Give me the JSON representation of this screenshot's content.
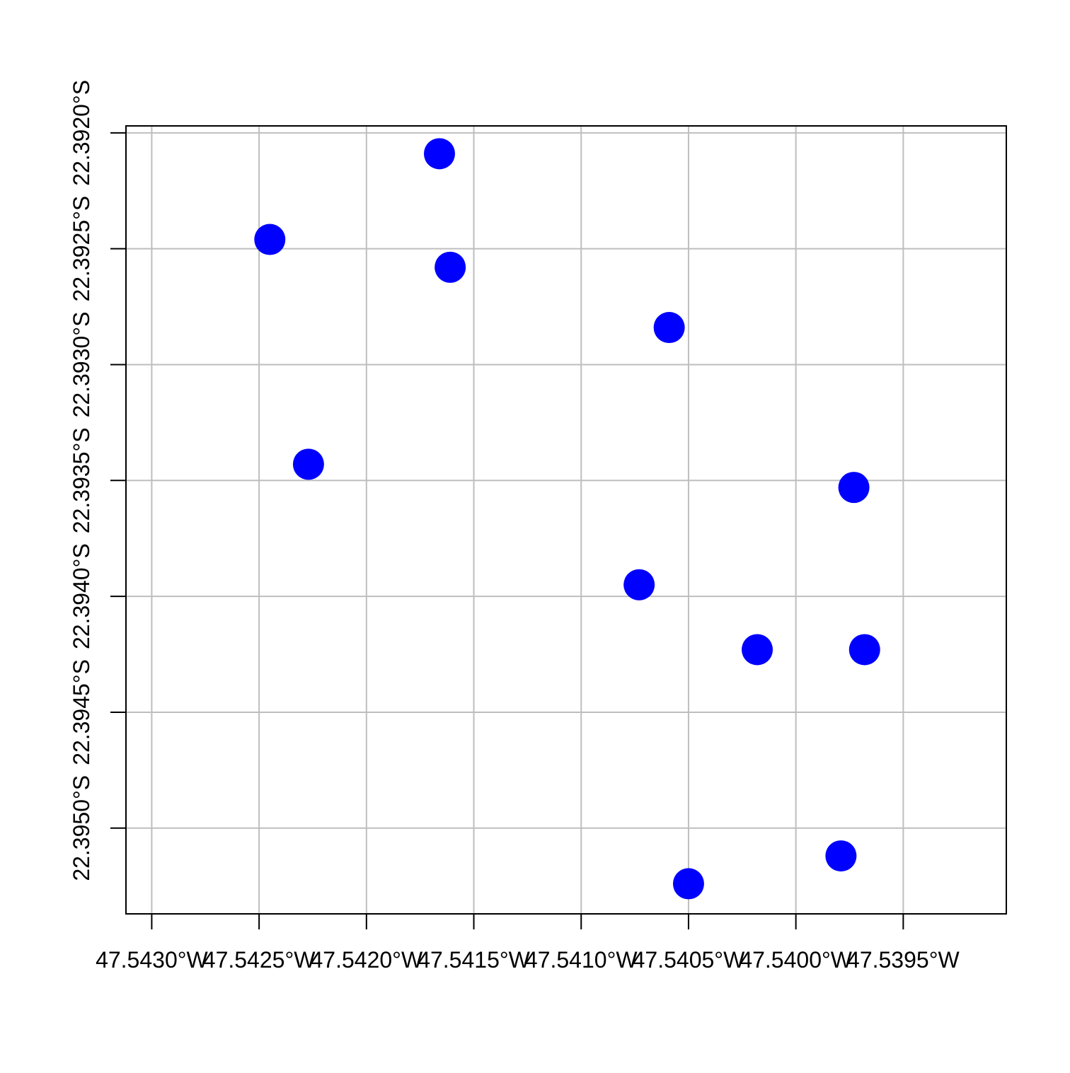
{
  "chart_data": {
    "type": "scatter",
    "title": "",
    "xlabel": "",
    "ylabel": "",
    "grid": true,
    "xlim": [
      -47.54312,
      -47.53902
    ],
    "ylim": [
      -22.39537,
      -22.39197
    ],
    "x_ticks": [
      -47.543,
      -47.5425,
      -47.542,
      -47.5415,
      -47.541,
      -47.5405,
      -47.54,
      -47.5395
    ],
    "x_tick_labels": [
      "47.5430°W",
      "47.5425°W",
      "47.5420°W",
      "47.5415°W",
      "47.5410°W",
      "47.5405°W",
      "47.5400°W",
      "47.5395°W"
    ],
    "y_ticks": [
      -22.392,
      -22.3925,
      -22.393,
      -22.3935,
      -22.394,
      -22.3945,
      -22.395
    ],
    "y_tick_labels": [
      "22.3920°S",
      "22.3925°S",
      "22.3930°S",
      "22.3935°S",
      "22.3940°S",
      "22.3945°S",
      "22.3950°S"
    ],
    "series": [
      {
        "color": "#0000ff",
        "marker": "filled-circle",
        "points": [
          {
            "x": -47.54166,
            "y": -22.39209
          },
          {
            "x": -47.54245,
            "y": -22.39246
          },
          {
            "x": -47.54161,
            "y": -22.39258
          },
          {
            "x": -47.54059,
            "y": -22.39284
          },
          {
            "x": -47.54227,
            "y": -22.39343
          },
          {
            "x": -47.53973,
            "y": -22.39353
          },
          {
            "x": -47.54073,
            "y": -22.39395
          },
          {
            "x": -47.54018,
            "y": -22.39423
          },
          {
            "x": -47.53968,
            "y": -22.39423
          },
          {
            "x": -47.53979,
            "y": -22.39512
          },
          {
            "x": -47.5405,
            "y": -22.39524
          }
        ]
      }
    ]
  }
}
